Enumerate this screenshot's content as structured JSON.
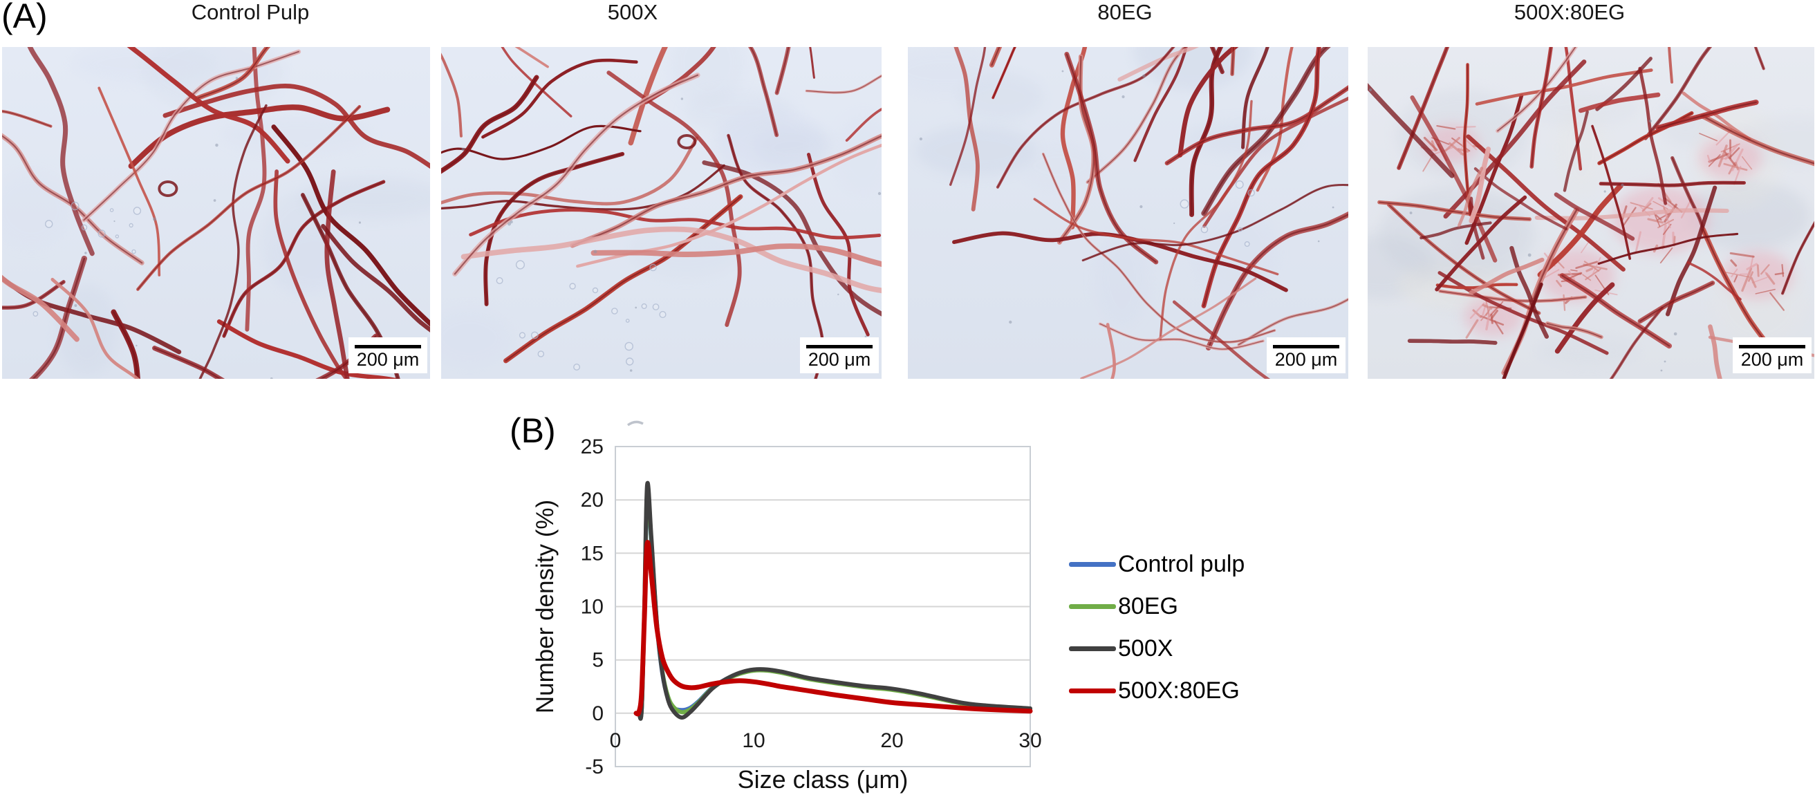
{
  "figure": {
    "panel_a": {
      "label": "(A)",
      "scalebar_label": "200 μm",
      "stain_color": "#b03137",
      "background_color": "#e2e8f3",
      "images": [
        {
          "title": "Control Pulp",
          "name": "control-pulp"
        },
        {
          "title": "500X",
          "name": "500x"
        },
        {
          "title": "80EG",
          "name": "80eg"
        },
        {
          "title": "500X:80EG",
          "name": "500x-80eg"
        }
      ]
    },
    "panel_b": {
      "label": "(B)"
    }
  },
  "chart_data": {
    "type": "line",
    "title": "",
    "xlabel": "Size class (μm)",
    "ylabel": "Number density (%)",
    "xlim": [
      0,
      30
    ],
    "ylim": [
      -5,
      25
    ],
    "xticks": [
      0,
      10,
      20,
      30
    ],
    "yticks": [
      -5,
      0,
      5,
      10,
      15,
      20,
      25
    ],
    "grid": "horizontal",
    "gridline_color": "#d6d6d6",
    "axis_border_color": "#c9ced4",
    "legend_position": "right",
    "x": [
      1.5,
      1.7,
      1.9,
      2.1,
      2.3,
      2.6,
      3.0,
      3.4,
      3.8,
      4.2,
      4.8,
      5.4,
      6.0,
      7.0,
      8.0,
      9.0,
      10.0,
      11.0,
      12.0,
      13.0,
      14.0,
      16.0,
      18.0,
      20.0,
      22.0,
      25.0,
      27.0,
      30.0
    ],
    "series": [
      {
        "name": "Control pulp",
        "color": "#4472C4",
        "values": [
          0,
          0,
          0.3,
          9.2,
          20.4,
          16.0,
          8.3,
          3.7,
          1.4,
          0.5,
          0.3,
          0.5,
          1.1,
          2.4,
          3.2,
          3.75,
          4.05,
          4.05,
          3.85,
          3.55,
          3.25,
          2.85,
          2.5,
          2.25,
          1.8,
          0.95,
          0.65,
          0.4
        ]
      },
      {
        "name": "80EG",
        "color": "#70AD47",
        "values": [
          0,
          0,
          0.3,
          9.6,
          20.9,
          16.2,
          8.4,
          3.9,
          1.6,
          0.6,
          0.1,
          0.35,
          1.0,
          2.35,
          3.15,
          3.7,
          4.0,
          4.0,
          3.8,
          3.5,
          3.2,
          2.8,
          2.45,
          2.2,
          1.75,
          0.92,
          0.62,
          0.38
        ]
      },
      {
        "name": "500X",
        "color": "#404040",
        "values": [
          0,
          0,
          0.3,
          10.0,
          21.4,
          16.5,
          8.5,
          3.8,
          1.3,
          0.2,
          -0.4,
          0.1,
          0.9,
          2.3,
          3.2,
          3.8,
          4.1,
          4.1,
          3.9,
          3.6,
          3.3,
          2.9,
          2.55,
          2.3,
          1.85,
          1.0,
          0.7,
          0.45
        ]
      },
      {
        "name": "500X:80EG",
        "color": "#C00000",
        "values": [
          0,
          0.1,
          2.0,
          9.0,
          15.9,
          13.0,
          8.0,
          5.2,
          3.9,
          3.1,
          2.55,
          2.4,
          2.45,
          2.75,
          2.95,
          3.05,
          2.95,
          2.75,
          2.5,
          2.3,
          2.1,
          1.7,
          1.35,
          1.0,
          0.8,
          0.5,
          0.35,
          0.2
        ]
      }
    ]
  }
}
